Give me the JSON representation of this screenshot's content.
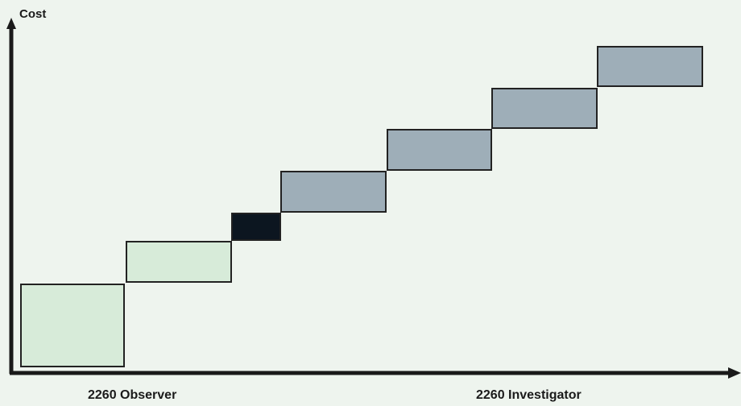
{
  "diagram": {
    "y_axis_label": "Cost",
    "x_left_label": "2260 Observer",
    "x_right_label": "2260 Investigator",
    "colors": {
      "background": "#eef4ee",
      "axis": "#1a1a1a",
      "light_step": "#d7ebd9",
      "dark_step": "#0c1620",
      "gray_step": "#9eaeb8",
      "step_border": "#222222"
    },
    "steps": [
      {
        "index": 1,
        "kind": "light"
      },
      {
        "index": 2,
        "kind": "light"
      },
      {
        "index": 3,
        "kind": "dark"
      },
      {
        "index": 4,
        "kind": "gray"
      },
      {
        "index": 5,
        "kind": "gray"
      },
      {
        "index": 6,
        "kind": "gray"
      },
      {
        "index": 7,
        "kind": "gray"
      }
    ]
  }
}
